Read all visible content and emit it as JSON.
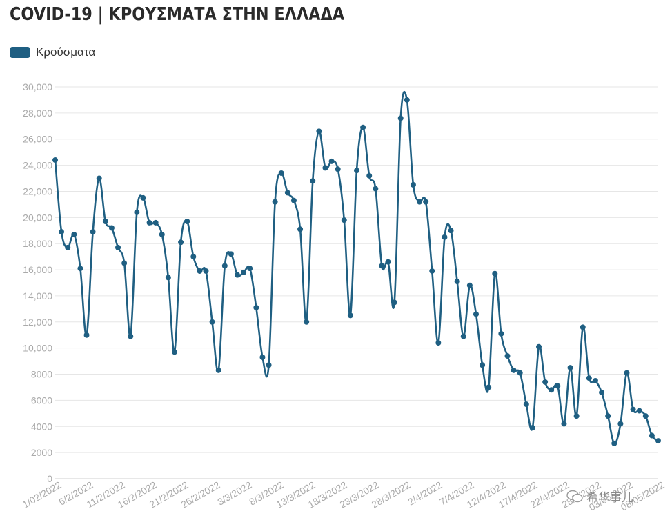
{
  "title": "COVID-19 | ΚΡΟΥΣΜΑΤΑ ΣΤΗΝ ΕΛΛΑΔΑ",
  "colors": {
    "series": "#1f5f82",
    "grid": "#e6e6e6",
    "axis_text": "#aaaaaa"
  },
  "watermark": "希华事儿",
  "chart_data": {
    "type": "line",
    "title": "COVID-19 | ΚΡΟΥΣΜΑΤΑ ΣΤΗΝ ΕΛΛΑΔΑ",
    "xlabel": "",
    "ylabel": "",
    "ylim": [
      0,
      30000
    ],
    "grid": true,
    "legend": "top-left",
    "y_ticks": [
      0,
      2000,
      4000,
      6000,
      8000,
      10000,
      12000,
      14000,
      16000,
      18000,
      20000,
      22000,
      24000,
      26000,
      28000,
      30000
    ],
    "y_tick_labels": [
      "0",
      "2000",
      "4000",
      "6000",
      "8000",
      "10,000",
      "12,000",
      "14,000",
      "16,000",
      "18,000",
      "20,000",
      "22,000",
      "24,000",
      "26,000",
      "28,000",
      "30,000"
    ],
    "x_tick_labels": [
      "1/02/2022",
      "6/2/2022",
      "11/2/2022",
      "16/2/2022",
      "21/2/2022",
      "26/2/2022",
      "3/3/2022",
      "8/3/2022",
      "13/3/2022",
      "18/3/2022",
      "23/3/2022",
      "28/3/2022",
      "2/4/2022",
      "7/4/2022",
      "12/4/2022",
      "17/4/2022",
      "22/4/2022",
      "28/4/2022",
      "03/05/2022",
      "08/05/2022"
    ],
    "series": [
      {
        "name": "Κρούσματα",
        "values": [
          24400,
          18900,
          17700,
          18700,
          16100,
          11000,
          18900,
          23000,
          19700,
          19200,
          17700,
          16500,
          10900,
          20400,
          21500,
          19600,
          19600,
          18700,
          15400,
          9700,
          18100,
          19700,
          17000,
          15900,
          15900,
          12000,
          8300,
          16300,
          17200,
          15600,
          15800,
          16100,
          13100,
          9300,
          8700,
          21200,
          23400,
          21900,
          21300,
          19100,
          12000,
          22800,
          26600,
          23800,
          24300,
          23700,
          19800,
          12500,
          23600,
          26900,
          23200,
          22200,
          16300,
          16600,
          13500,
          27600,
          29000,
          22500,
          21200,
          21200,
          15900,
          10400,
          18500,
          19000,
          15100,
          10900,
          14800,
          12600,
          8700,
          7000,
          15700,
          11100,
          9400,
          8300,
          8100,
          5700,
          3900,
          10100,
          7400,
          6800,
          7100,
          4200,
          8500,
          4800,
          11600,
          7700,
          7500,
          6600,
          4800,
          2700,
          4200,
          8100,
          5300,
          5200,
          4800,
          3300,
          2900
        ]
      }
    ]
  }
}
